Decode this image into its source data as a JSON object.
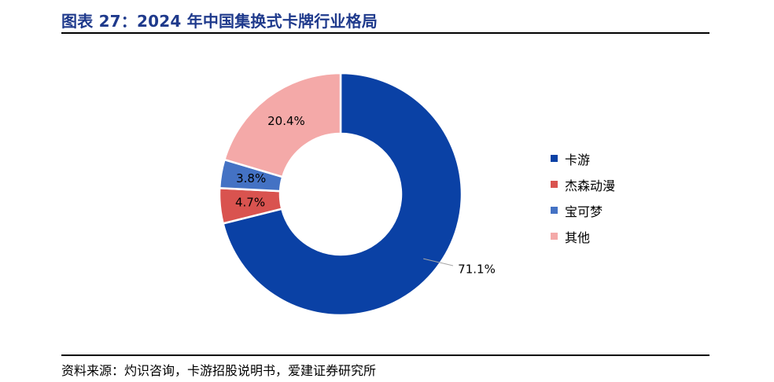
{
  "header": {
    "title": "图表 27：2024 年中国集换式卡牌行业格局"
  },
  "footer": {
    "source": "资料来源：灼识咨询，卡游招股说明书，爱建证券研究所"
  },
  "chart_data": {
    "type": "donut",
    "title": "图表 27：2024 年中国集换式卡牌行业格局",
    "unit": "%",
    "legend_position": "right",
    "slices": [
      {
        "name": "卡游",
        "value": 71.1,
        "label": "71.1%",
        "color": "#0a41a5"
      },
      {
        "name": "杰森动漫",
        "value": 4.7,
        "label": "4.7%",
        "color": "#d9534f"
      },
      {
        "name": "宝可梦",
        "value": 3.8,
        "label": "3.8%",
        "color": "#4472c4"
      },
      {
        "name": "其他",
        "value": 20.4,
        "label": "20.4%",
        "color": "#f4a9a8"
      }
    ]
  }
}
